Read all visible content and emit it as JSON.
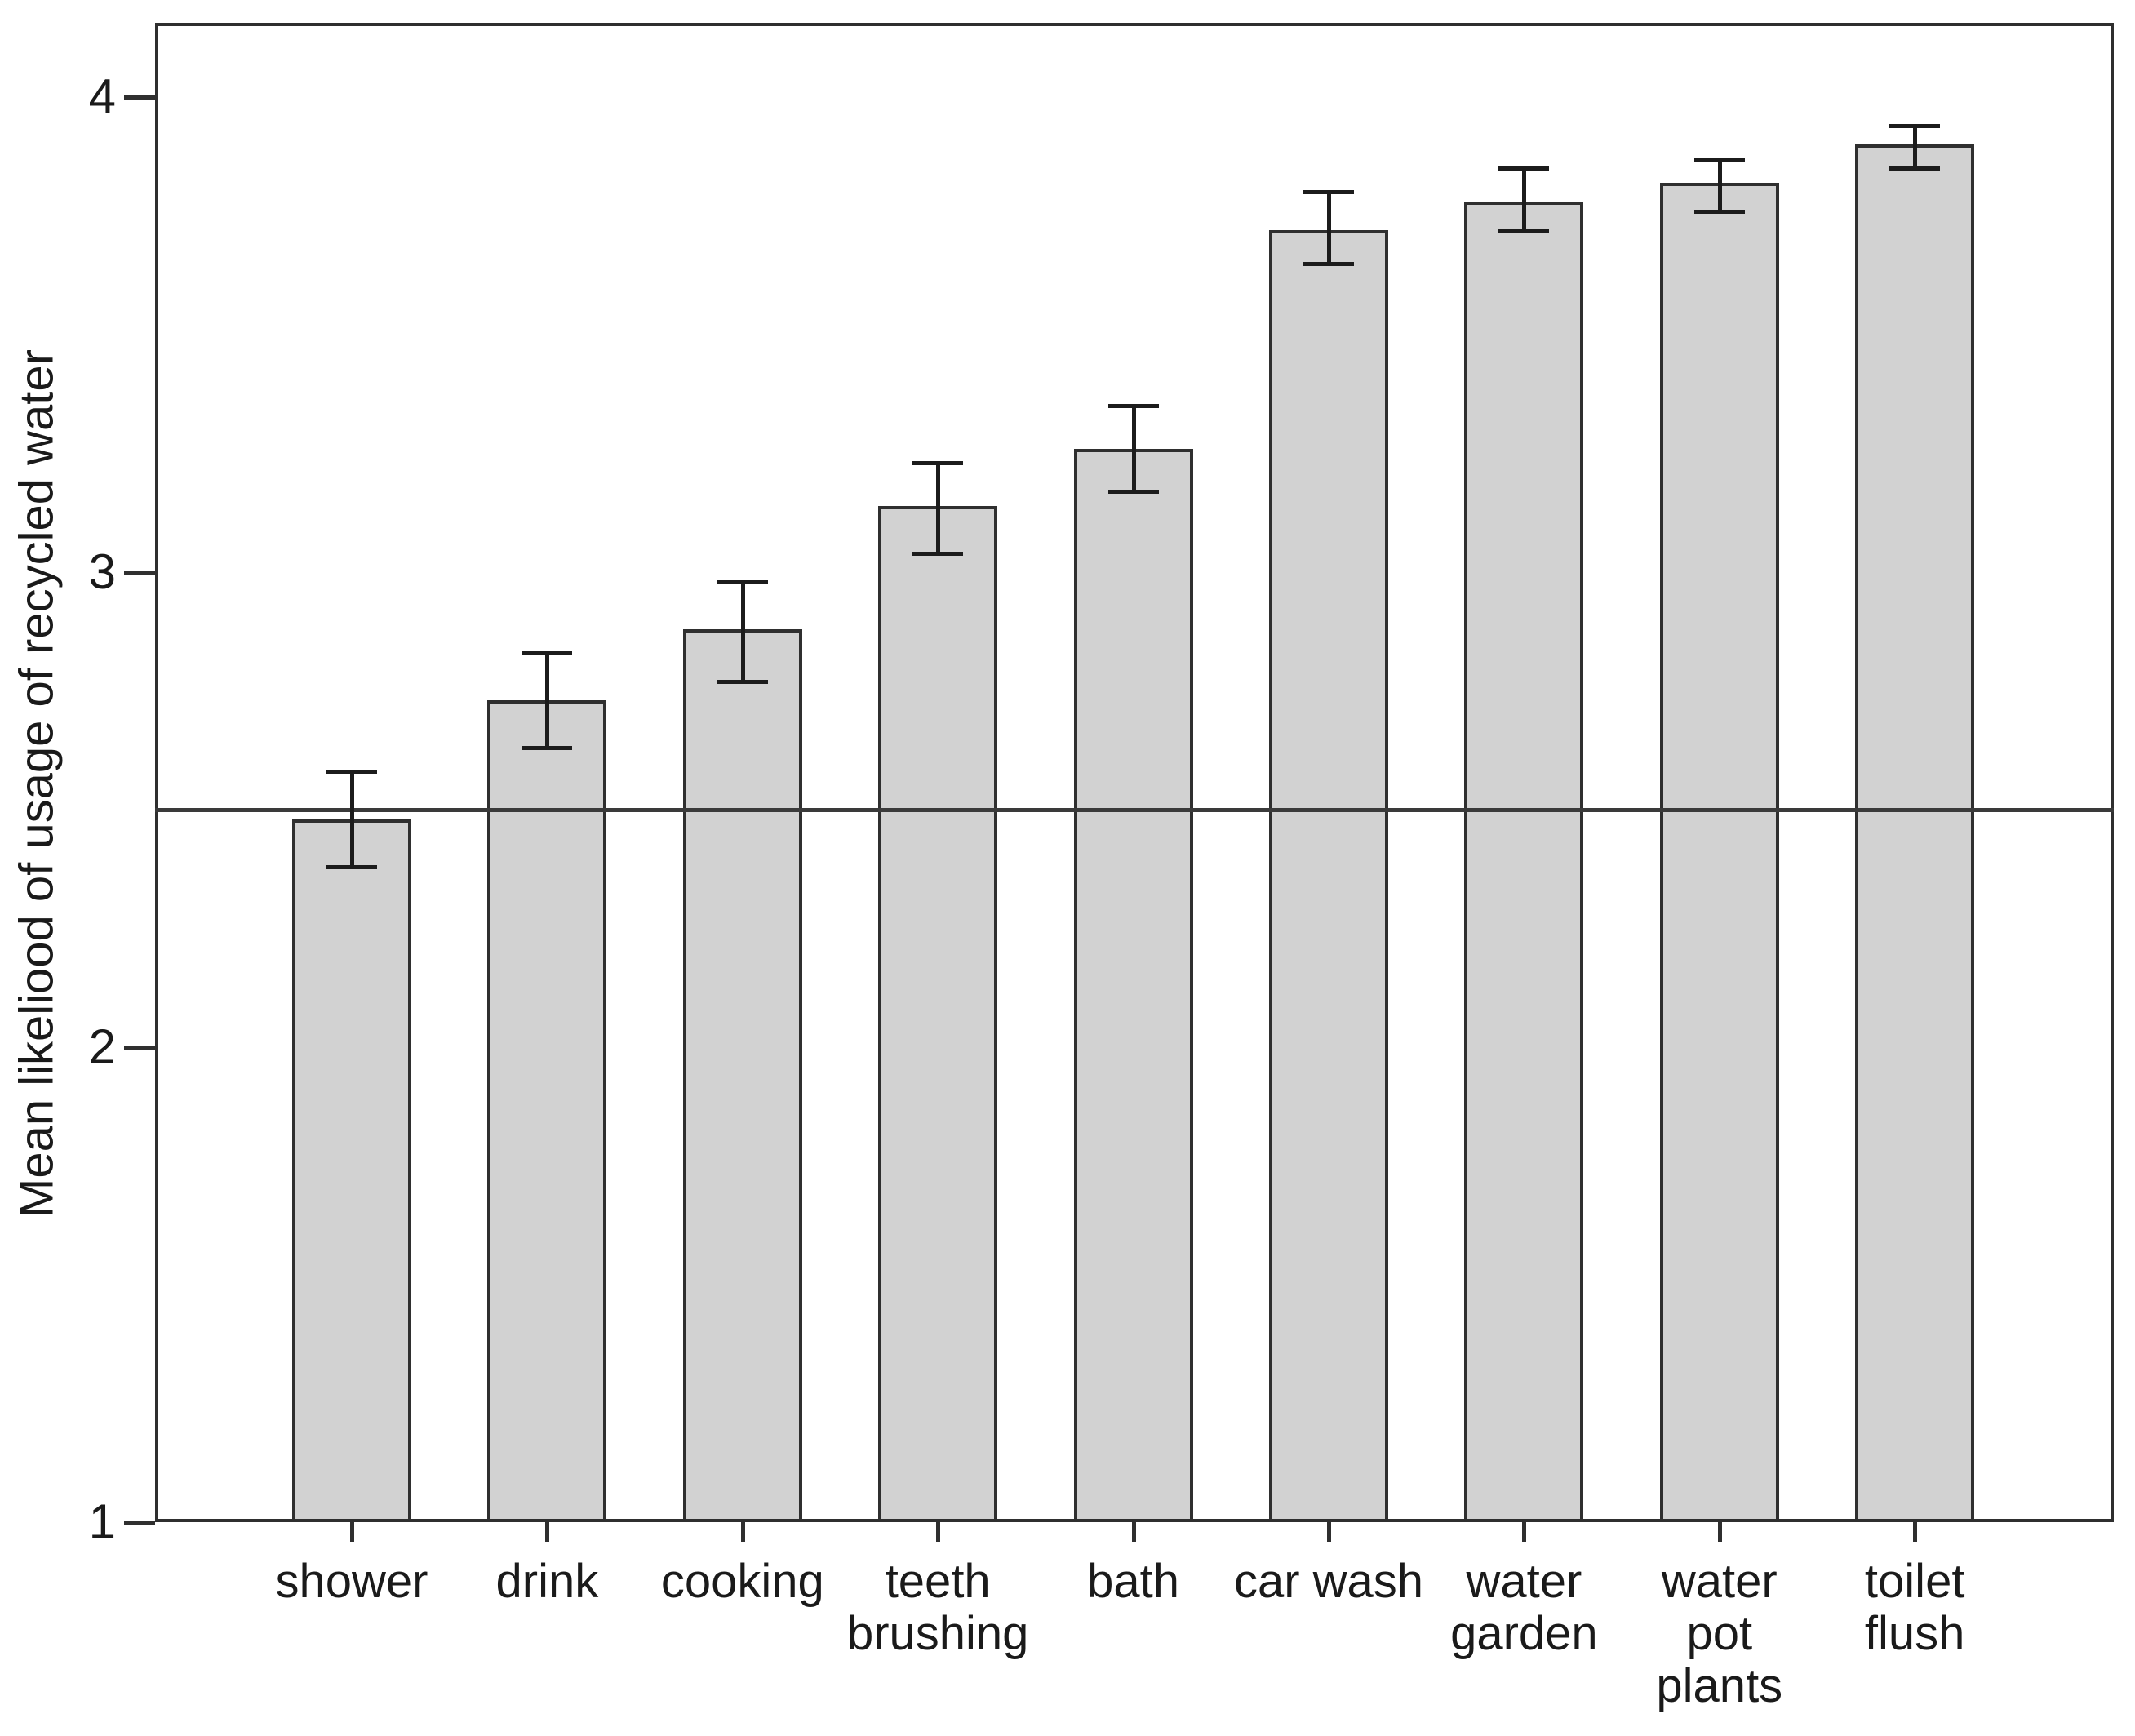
{
  "chart_data": {
    "type": "bar",
    "ylabel": "Mean likeliood of usage of recycled water",
    "xlabel": "",
    "categories": [
      "shower",
      "drink",
      "cooking",
      "teeth brushing",
      "bath",
      "car wash",
      "water garden",
      "water pot plants",
      "toilet flush"
    ],
    "category_label_lines": [
      [
        "shower"
      ],
      [
        "drink"
      ],
      [
        "cooking"
      ],
      [
        "teeth",
        "brushing"
      ],
      [
        "bath"
      ],
      [
        "car wash"
      ],
      [
        "water",
        "garden"
      ],
      [
        "water",
        "pot",
        "plants"
      ],
      [
        "toilet",
        "flush"
      ]
    ],
    "series": [
      {
        "name": "Mean likeliood of usage of recycled water",
        "values": [
          2.48,
          2.73,
          2.88,
          3.14,
          3.26,
          3.72,
          3.78,
          3.82,
          3.9
        ]
      }
    ],
    "error_bars": {
      "upper": [
        2.58,
        2.83,
        2.98,
        3.23,
        3.35,
        3.8,
        3.85,
        3.87,
        3.94
      ],
      "lower": [
        2.38,
        2.63,
        2.77,
        3.04,
        3.17,
        3.65,
        3.72,
        3.76,
        3.85
      ]
    },
    "yticks": [
      1,
      2,
      3,
      4
    ],
    "ylim": [
      1,
      4.16
    ],
    "reference_line": 2.5,
    "grid": "off",
    "legend": "none",
    "colors": {
      "bar_fill": "#d2d2d2",
      "bar_border": "#2f2f2f",
      "axis": "#2f2f2f",
      "error_bar": "#1c1c1c",
      "reference_line": "#3a3a3a",
      "background": "#ffffff",
      "text": "#1a1a1a"
    }
  }
}
